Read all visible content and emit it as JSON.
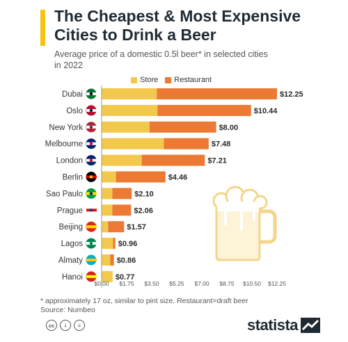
{
  "header": {
    "title": "The Cheapest & Most Expensive Cities to Drink a Beer",
    "subtitle": "Average price of a domestic 0.5l beer* in selected cities in 2022"
  },
  "legend": {
    "store": "Store",
    "restaurant": "Restaurant"
  },
  "colors": {
    "store": "#f2c94c",
    "restaurant": "#ec7a35",
    "accent": "#f2c413"
  },
  "chart_data": {
    "type": "bar",
    "orientation": "horizontal",
    "stacked": true,
    "categories": [
      "Dubai",
      "Oslo",
      "New York",
      "Melbourne",
      "London",
      "Berlin",
      "Sao Paulo",
      "Prague",
      "Beijing",
      "Lagos",
      "Almaty",
      "Hanoi"
    ],
    "series": [
      {
        "name": "Store",
        "values": [
          3.85,
          3.9,
          3.35,
          4.35,
          2.8,
          1.0,
          0.75,
          0.75,
          0.45,
          0.8,
          0.6,
          0.77
        ]
      },
      {
        "name": "Restaurant",
        "values": [
          8.4,
          6.54,
          4.65,
          3.13,
          4.41,
          3.46,
          1.35,
          1.31,
          1.12,
          0.16,
          0.26,
          0.0
        ]
      }
    ],
    "totals": [
      "$12.25",
      "$10.44",
      "$8.00",
      "$7.48",
      "$7.21",
      "$4.46",
      "$2.10",
      "$2.06",
      "$1.57",
      "$0.96",
      "$0.86",
      "$0.77"
    ],
    "xticks": [
      "$0.00",
      "$1.75",
      "$3.50",
      "$5.25",
      "$7.00",
      "$8.75",
      "$10.50",
      "$12.25"
    ],
    "xlim": [
      0,
      12.25
    ],
    "grid": false,
    "legend_position": "top"
  },
  "footnote": {
    "line1": "* approximately 17 oz, similar to pint size. Restaurant=draft beer",
    "line2": "Source: Numbeo"
  },
  "brand": {
    "name": "statista"
  }
}
